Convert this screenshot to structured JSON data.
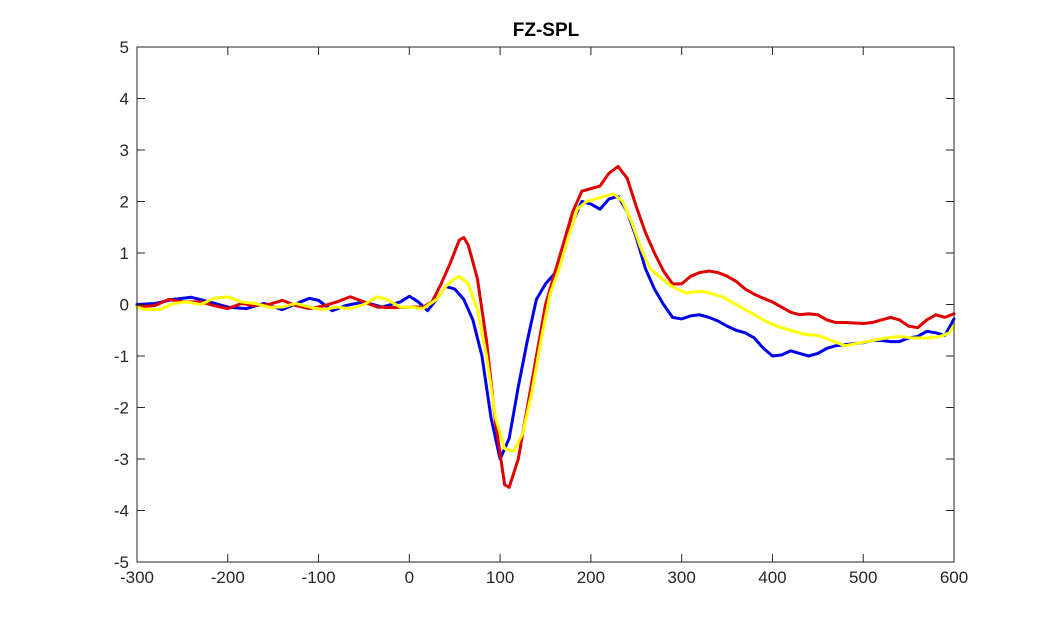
{
  "chart_data": {
    "type": "line",
    "title": "FZ-SPL",
    "xlabel": "",
    "ylabel": "",
    "xlim": [
      -300,
      600
    ],
    "ylim": [
      -5,
      5
    ],
    "x_ticks": [
      -300,
      -200,
      -100,
      0,
      100,
      200,
      300,
      400,
      500,
      600
    ],
    "y_ticks": [
      -5,
      -4,
      -3,
      -2,
      -1,
      0,
      1,
      2,
      3,
      4,
      5
    ],
    "grid": false,
    "legend": "none",
    "series": [
      {
        "color": "#0000ee",
        "points": [
          [
            -300,
            0.0
          ],
          [
            -280,
            0.02
          ],
          [
            -260,
            0.1
          ],
          [
            -240,
            0.14
          ],
          [
            -220,
            0.05
          ],
          [
            -200,
            -0.05
          ],
          [
            -180,
            -0.08
          ],
          [
            -160,
            0.02
          ],
          [
            -140,
            -0.1
          ],
          [
            -120,
            0.05
          ],
          [
            -110,
            0.12
          ],
          [
            -100,
            0.08
          ],
          [
            -85,
            -0.12
          ],
          [
            -70,
            -0.02
          ],
          [
            -50,
            0.05
          ],
          [
            -30,
            -0.05
          ],
          [
            -10,
            0.05
          ],
          [
            0,
            0.16
          ],
          [
            10,
            0.05
          ],
          [
            20,
            -0.12
          ],
          [
            30,
            0.1
          ],
          [
            40,
            0.35
          ],
          [
            50,
            0.3
          ],
          [
            60,
            0.1
          ],
          [
            70,
            -0.3
          ],
          [
            80,
            -1.0
          ],
          [
            90,
            -2.2
          ],
          [
            100,
            -3.0
          ],
          [
            110,
            -2.6
          ],
          [
            120,
            -1.6
          ],
          [
            130,
            -0.7
          ],
          [
            140,
            0.1
          ],
          [
            150,
            0.4
          ],
          [
            160,
            0.6
          ],
          [
            170,
            1.1
          ],
          [
            180,
            1.6
          ],
          [
            190,
            2.0
          ],
          [
            200,
            1.95
          ],
          [
            210,
            1.85
          ],
          [
            220,
            2.05
          ],
          [
            230,
            2.1
          ],
          [
            240,
            1.8
          ],
          [
            250,
            1.3
          ],
          [
            260,
            0.7
          ],
          [
            270,
            0.3
          ],
          [
            280,
            0.0
          ],
          [
            290,
            -0.25
          ],
          [
            300,
            -0.28
          ],
          [
            310,
            -0.22
          ],
          [
            320,
            -0.2
          ],
          [
            330,
            -0.25
          ],
          [
            340,
            -0.32
          ],
          [
            350,
            -0.42
          ],
          [
            360,
            -0.5
          ],
          [
            370,
            -0.55
          ],
          [
            380,
            -0.65
          ],
          [
            390,
            -0.85
          ],
          [
            400,
            -1.0
          ],
          [
            410,
            -0.98
          ],
          [
            420,
            -0.9
          ],
          [
            430,
            -0.95
          ],
          [
            440,
            -1.0
          ],
          [
            450,
            -0.95
          ],
          [
            460,
            -0.85
          ],
          [
            470,
            -0.8
          ],
          [
            480,
            -0.78
          ],
          [
            490,
            -0.76
          ],
          [
            500,
            -0.74
          ],
          [
            510,
            -0.7
          ],
          [
            520,
            -0.7
          ],
          [
            530,
            -0.72
          ],
          [
            540,
            -0.72
          ],
          [
            550,
            -0.65
          ],
          [
            560,
            -0.62
          ],
          [
            570,
            -0.52
          ],
          [
            580,
            -0.55
          ],
          [
            590,
            -0.6
          ],
          [
            600,
            -0.28
          ]
        ]
      },
      {
        "color": "#e00000",
        "points": [
          [
            -300,
            -0.05
          ],
          [
            -280,
            -0.02
          ],
          [
            -265,
            0.1
          ],
          [
            -250,
            0.05
          ],
          [
            -230,
            0.05
          ],
          [
            -215,
            -0.02
          ],
          [
            -200,
            -0.08
          ],
          [
            -185,
            0.02
          ],
          [
            -170,
            -0.02
          ],
          [
            -155,
            0.0
          ],
          [
            -140,
            0.08
          ],
          [
            -125,
            -0.02
          ],
          [
            -110,
            -0.08
          ],
          [
            -95,
            -0.03
          ],
          [
            -80,
            0.05
          ],
          [
            -65,
            0.15
          ],
          [
            -50,
            0.05
          ],
          [
            -35,
            -0.05
          ],
          [
            -20,
            -0.06
          ],
          [
            0,
            -0.05
          ],
          [
            15,
            -0.05
          ],
          [
            25,
            0.05
          ],
          [
            35,
            0.4
          ],
          [
            45,
            0.8
          ],
          [
            55,
            1.25
          ],
          [
            60,
            1.3
          ],
          [
            65,
            1.15
          ],
          [
            75,
            0.5
          ],
          [
            85,
            -0.7
          ],
          [
            95,
            -2.3
          ],
          [
            105,
            -3.5
          ],
          [
            110,
            -3.55
          ],
          [
            120,
            -3.0
          ],
          [
            130,
            -2.0
          ],
          [
            140,
            -1.0
          ],
          [
            150,
            0.0
          ],
          [
            160,
            0.6
          ],
          [
            170,
            1.2
          ],
          [
            180,
            1.8
          ],
          [
            190,
            2.2
          ],
          [
            200,
            2.25
          ],
          [
            210,
            2.3
          ],
          [
            220,
            2.55
          ],
          [
            230,
            2.68
          ],
          [
            240,
            2.45
          ],
          [
            250,
            1.9
          ],
          [
            260,
            1.4
          ],
          [
            270,
            1.0
          ],
          [
            280,
            0.65
          ],
          [
            290,
            0.4
          ],
          [
            300,
            0.4
          ],
          [
            310,
            0.55
          ],
          [
            320,
            0.62
          ],
          [
            330,
            0.65
          ],
          [
            340,
            0.62
          ],
          [
            350,
            0.55
          ],
          [
            360,
            0.45
          ],
          [
            370,
            0.3
          ],
          [
            380,
            0.2
          ],
          [
            390,
            0.12
          ],
          [
            400,
            0.05
          ],
          [
            410,
            -0.05
          ],
          [
            420,
            -0.15
          ],
          [
            430,
            -0.2
          ],
          [
            440,
            -0.18
          ],
          [
            450,
            -0.2
          ],
          [
            460,
            -0.3
          ],
          [
            470,
            -0.35
          ],
          [
            480,
            -0.35
          ],
          [
            490,
            -0.36
          ],
          [
            500,
            -0.37
          ],
          [
            510,
            -0.35
          ],
          [
            520,
            -0.3
          ],
          [
            530,
            -0.25
          ],
          [
            540,
            -0.3
          ],
          [
            550,
            -0.42
          ],
          [
            560,
            -0.45
          ],
          [
            570,
            -0.3
          ],
          [
            580,
            -0.2
          ],
          [
            590,
            -0.25
          ],
          [
            600,
            -0.18
          ]
        ]
      },
      {
        "color": "#ffff00",
        "points": [
          [
            -300,
            -0.05
          ],
          [
            -290,
            -0.1
          ],
          [
            -275,
            -0.1
          ],
          [
            -260,
            0.02
          ],
          [
            -245,
            0.05
          ],
          [
            -230,
            0.0
          ],
          [
            -215,
            0.12
          ],
          [
            -200,
            0.15
          ],
          [
            -185,
            0.05
          ],
          [
            -170,
            0.02
          ],
          [
            -155,
            -0.05
          ],
          [
            -140,
            -0.05
          ],
          [
            -125,
            0.02
          ],
          [
            -110,
            -0.05
          ],
          [
            -95,
            -0.1
          ],
          [
            -80,
            -0.05
          ],
          [
            -65,
            -0.08
          ],
          [
            -50,
            0.0
          ],
          [
            -35,
            0.15
          ],
          [
            -25,
            0.1
          ],
          [
            -10,
            -0.05
          ],
          [
            0,
            -0.05
          ],
          [
            15,
            -0.08
          ],
          [
            30,
            0.1
          ],
          [
            40,
            0.35
          ],
          [
            50,
            0.5
          ],
          [
            55,
            0.55
          ],
          [
            65,
            0.4
          ],
          [
            75,
            -0.1
          ],
          [
            85,
            -1.0
          ],
          [
            95,
            -2.2
          ],
          [
            105,
            -2.8
          ],
          [
            115,
            -2.85
          ],
          [
            125,
            -2.5
          ],
          [
            135,
            -1.7
          ],
          [
            145,
            -0.7
          ],
          [
            155,
            0.2
          ],
          [
            165,
            0.7
          ],
          [
            175,
            1.3
          ],
          [
            185,
            1.85
          ],
          [
            195,
            2.0
          ],
          [
            205,
            2.05
          ],
          [
            215,
            2.1
          ],
          [
            225,
            2.15
          ],
          [
            235,
            2.0
          ],
          [
            245,
            1.6
          ],
          [
            255,
            1.1
          ],
          [
            265,
            0.7
          ],
          [
            275,
            0.55
          ],
          [
            285,
            0.4
          ],
          [
            295,
            0.3
          ],
          [
            305,
            0.22
          ],
          [
            315,
            0.25
          ],
          [
            325,
            0.25
          ],
          [
            335,
            0.2
          ],
          [
            345,
            0.15
          ],
          [
            355,
            0.05
          ],
          [
            365,
            -0.05
          ],
          [
            375,
            -0.15
          ],
          [
            385,
            -0.25
          ],
          [
            395,
            -0.35
          ],
          [
            410,
            -0.45
          ],
          [
            420,
            -0.5
          ],
          [
            435,
            -0.58
          ],
          [
            450,
            -0.6
          ],
          [
            465,
            -0.7
          ],
          [
            480,
            -0.8
          ],
          [
            495,
            -0.75
          ],
          [
            510,
            -0.7
          ],
          [
            525,
            -0.65
          ],
          [
            540,
            -0.62
          ],
          [
            555,
            -0.65
          ],
          [
            570,
            -0.65
          ],
          [
            585,
            -0.62
          ],
          [
            595,
            -0.55
          ],
          [
            600,
            -0.4
          ]
        ]
      }
    ]
  }
}
